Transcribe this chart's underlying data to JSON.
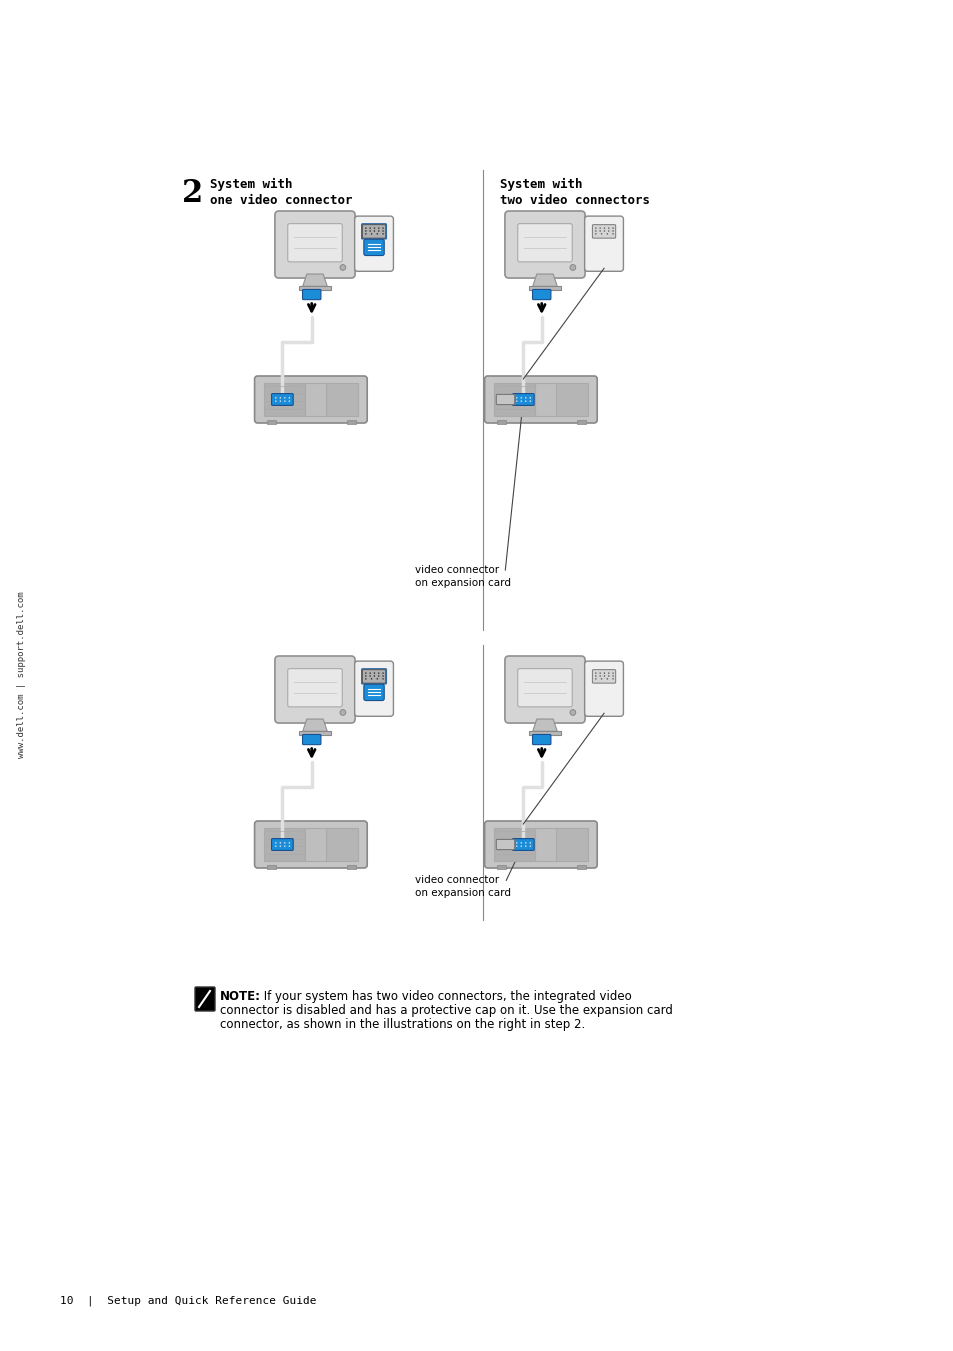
{
  "bg_color": "#ffffff",
  "page_width": 9.54,
  "page_height": 13.51,
  "sidebar_text": "www.dell.com | support.dell.com",
  "step_number": "2",
  "left_title_line1": "System with",
  "left_title_line2": "one video connector",
  "right_title_line1": "System with",
  "right_title_line2": "two video connectors",
  "annotation1_line1": "video connector",
  "annotation1_line2": "on expansion card",
  "annotation2_line1": "video connector",
  "annotation2_line2": "on expansion card",
  "note_bold": "NOTE:",
  "note_line1": " If your system has two video connectors, the integrated video",
  "note_line2": "connector is disabled and has a protective cap on it. Use the expansion card",
  "note_line3": "connector, as shown in the illustrations on the right in step 2.",
  "footer_text": "10  |  Setup and Quick Reference Guide",
  "divider_color": "#888888"
}
